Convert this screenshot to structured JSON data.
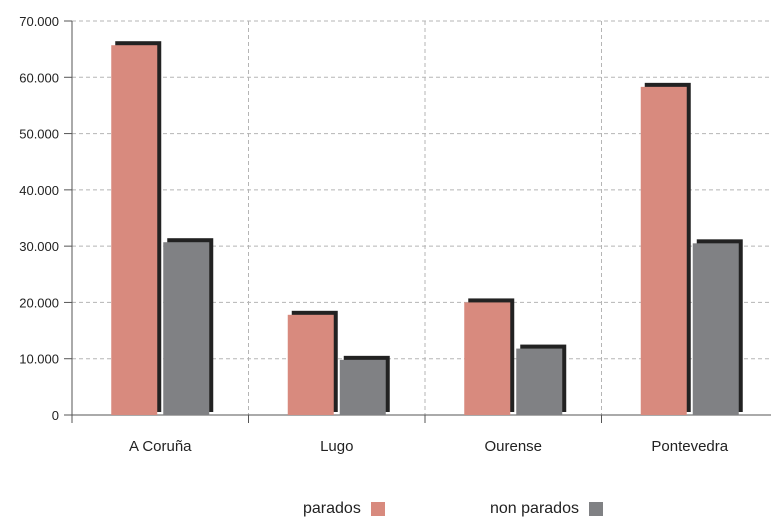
{
  "chart_data": {
    "type": "bar",
    "categories": [
      "A Coruña",
      "Lugo",
      "Ourense",
      "Pontevedra"
    ],
    "series": [
      {
        "name": "parados",
        "values": [
          65700,
          17800,
          20000,
          58300
        ],
        "color": "#D88A7E"
      },
      {
        "name": "non parados",
        "values": [
          30700,
          9800,
          11800,
          30500
        ],
        "color": "#808184"
      }
    ],
    "y_ticks": [
      "0",
      "10.000",
      "20.000",
      "30.000",
      "40.000",
      "50.000",
      "60.000",
      "70.000"
    ],
    "ylim": [
      0,
      70000
    ],
    "grid": true,
    "legend_position": "bottom-center",
    "shadow_color": "#222222"
  }
}
